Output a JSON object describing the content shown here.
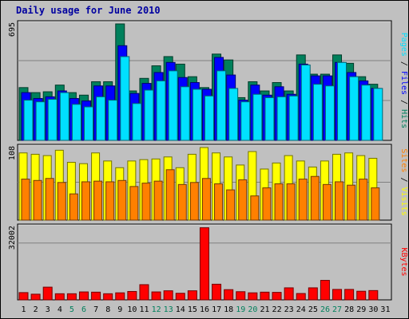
{
  "title": "Daily usage for June 2010",
  "chart_data": [
    {
      "type": "bar",
      "panel": "top",
      "categories": [
        "1",
        "2",
        "3",
        "4",
        "5",
        "6",
        "7",
        "8",
        "9",
        "10",
        "11",
        "12",
        "13",
        "14",
        "15",
        "16",
        "17",
        "18",
        "19",
        "20",
        "21",
        "22",
        "23",
        "24",
        "25",
        "26",
        "27",
        "28",
        "29",
        "30",
        "31"
      ],
      "max_label": "695",
      "ylim": [
        0,
        695
      ],
      "legend": [
        "Hits",
        "Files",
        "Pages"
      ],
      "legend_separator": " / ",
      "series": [
        {
          "name": "Hits",
          "color": "#00805c",
          "values": [
            315,
            285,
            290,
            330,
            285,
            270,
            350,
            350,
            695,
            295,
            370,
            445,
            500,
            455,
            380,
            315,
            515,
            480,
            255,
            350,
            295,
            345,
            295,
            510,
            395,
            395,
            510,
            460,
            380,
            335,
            0
          ]
        },
        {
          "name": "Files",
          "color": "#0000ff",
          "values": [
            285,
            250,
            260,
            295,
            250,
            235,
            325,
            325,
            565,
            280,
            340,
            405,
            465,
            375,
            345,
            305,
            495,
            390,
            240,
            330,
            270,
            320,
            275,
            455,
            385,
            385,
            465,
            405,
            355,
            310,
            0
          ]
        },
        {
          "name": "Pages",
          "color": "#00e0ff",
          "values": [
            240,
            230,
            245,
            285,
            215,
            200,
            260,
            240,
            500,
            220,
            300,
            355,
            415,
            320,
            305,
            265,
            415,
            310,
            230,
            275,
            255,
            260,
            265,
            450,
            335,
            325,
            465,
            380,
            330,
            310,
            0
          ]
        }
      ]
    },
    {
      "type": "bar",
      "panel": "middle",
      "categories": [
        "1",
        "2",
        "3",
        "4",
        "5",
        "6",
        "7",
        "8",
        "9",
        "10",
        "11",
        "12",
        "13",
        "14",
        "15",
        "16",
        "17",
        "18",
        "19",
        "20",
        "21",
        "22",
        "23",
        "24",
        "25",
        "26",
        "27",
        "28",
        "29",
        "30",
        "31"
      ],
      "max_label": "108",
      "ylim": [
        0,
        108
      ],
      "legend": [
        "Visits",
        "Sites"
      ],
      "legend_separator": " / ",
      "series": [
        {
          "name": "Visits",
          "color": "#ffff00",
          "values": [
            100,
            98,
            96,
            104,
            86,
            84,
            100,
            88,
            78,
            88,
            90,
            91,
            94,
            78,
            98,
            108,
            100,
            94,
            82,
            102,
            76,
            85,
            96,
            88,
            79,
            88,
            98,
            100,
            96,
            92,
            0
          ]
        },
        {
          "name": "Sites",
          "color": "#ff8000",
          "values": [
            61,
            59,
            62,
            56,
            39,
            57,
            58,
            57,
            59,
            50,
            55,
            58,
            75,
            53,
            56,
            62,
            54,
            45,
            60,
            36,
            48,
            54,
            54,
            61,
            65,
            53,
            57,
            52,
            61,
            48,
            0
          ]
        }
      ]
    },
    {
      "type": "bar",
      "panel": "bottom",
      "categories": [
        "1",
        "2",
        "3",
        "4",
        "5",
        "6",
        "7",
        "8",
        "9",
        "10",
        "11",
        "12",
        "13",
        "14",
        "15",
        "16",
        "17",
        "18",
        "19",
        "20",
        "21",
        "22",
        "23",
        "24",
        "25",
        "26",
        "27",
        "28",
        "29",
        "30",
        "31"
      ],
      "max_label": "32002",
      "ylim": [
        0,
        32002
      ],
      "legend": [
        "KBytes"
      ],
      "legend_separator": "",
      "series": [
        {
          "name": "KBytes",
          "color": "#ff0000",
          "values": [
            3200,
            2500,
            5600,
            2700,
            2700,
            3500,
            3400,
            2700,
            3100,
            3700,
            6700,
            3500,
            4000,
            2900,
            4000,
            31800,
            6900,
            4500,
            3600,
            3100,
            3400,
            3300,
            5300,
            2800,
            5300,
            8600,
            4600,
            4600,
            3800,
            4100,
            0
          ]
        }
      ]
    }
  ],
  "x_labels": [
    "1",
    "2",
    "3",
    "4",
    "5",
    "6",
    "7",
    "8",
    "9",
    "10",
    "11",
    "12",
    "13",
    "14",
    "15",
    "16",
    "17",
    "18",
    "19",
    "20",
    "21",
    "22",
    "23",
    "24",
    "25",
    "26",
    "27",
    "28",
    "29",
    "30",
    "31"
  ],
  "weekend_days": [
    5,
    6,
    12,
    13,
    19,
    20,
    26,
    27
  ],
  "colors": {
    "weekday": "#000000",
    "weekend": "#00805c",
    "title": "#0000a0",
    "panel_bg": "#c0c0c0"
  }
}
